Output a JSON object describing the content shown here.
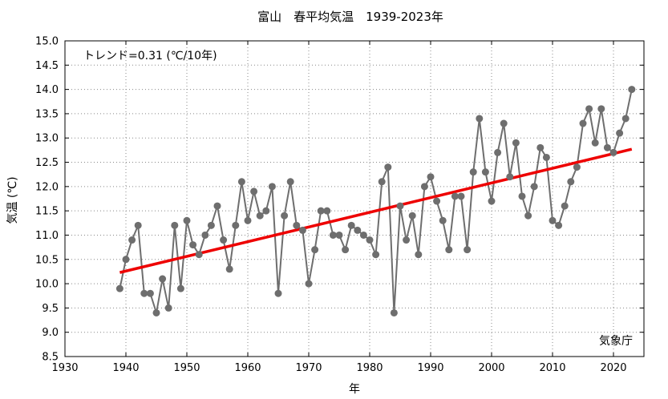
{
  "chart_data": {
    "type": "line",
    "title": "富山　春平均気温　1939-2023年",
    "xlabel": "年",
    "ylabel": "気温 (℃)",
    "xlim": [
      1930,
      2025
    ],
    "ylim": [
      8.5,
      15.0
    ],
    "xticks": [
      "1930",
      "1940",
      "1950",
      "1960",
      "1970",
      "1980",
      "1990",
      "2000",
      "2010",
      "2020"
    ],
    "yticks": [
      "8.5",
      "9.0",
      "9.5",
      "10.0",
      "10.5",
      "11.0",
      "11.5",
      "12.0",
      "12.5",
      "13.0",
      "13.5",
      "14.0",
      "14.5",
      "15.0"
    ],
    "grid": true,
    "trend_label": "トレンド=0.31 (℃/10年)",
    "source": "気象庁",
    "series": [
      {
        "color": "#6e6e6e",
        "x": [
          1939,
          1940,
          1941,
          1942,
          1943,
          1944,
          1945,
          1946,
          1947,
          1948,
          1949,
          1950,
          1951,
          1952,
          1953,
          1954,
          1955,
          1956,
          1957,
          1958,
          1959,
          1960,
          1961,
          1962,
          1963,
          1964,
          1965,
          1966,
          1967,
          1968,
          1969,
          1970,
          1971,
          1972,
          1973,
          1974,
          1975,
          1976,
          1977,
          1978,
          1979,
          1980,
          1981,
          1982,
          1983,
          1984,
          1985,
          1986,
          1987,
          1988,
          1989,
          1990,
          1991,
          1992,
          1993,
          1994,
          1995,
          1996,
          1997,
          1998,
          1999,
          2000,
          2001,
          2002,
          2003,
          2004,
          2005,
          2006,
          2007,
          2008,
          2009,
          2010,
          2011,
          2012,
          2013,
          2014,
          2015,
          2016,
          2017,
          2018,
          2019,
          2020,
          2021,
          2022,
          2023
        ],
        "values": [
          9.9,
          10.5,
          10.9,
          11.2,
          9.8,
          9.8,
          9.4,
          10.1,
          9.5,
          11.2,
          9.9,
          11.3,
          10.8,
          10.6,
          11.0,
          11.2,
          11.6,
          10.9,
          10.3,
          11.2,
          12.1,
          11.3,
          11.9,
          11.4,
          11.5,
          12.0,
          9.8,
          11.4,
          12.1,
          11.2,
          11.1,
          10.0,
          10.7,
          11.5,
          11.5,
          11.0,
          11.0,
          10.7,
          11.2,
          11.1,
          11.0,
          10.9,
          10.6,
          12.1,
          12.4,
          9.4,
          11.6,
          10.9,
          11.4,
          10.6,
          12.0,
          12.2,
          11.7,
          11.3,
          10.7,
          11.8,
          11.8,
          10.7,
          12.3,
          13.4,
          12.3,
          11.7,
          12.7,
          13.3,
          12.2,
          12.9,
          11.8,
          11.4,
          12.0,
          12.8,
          12.6,
          11.3,
          11.2,
          11.6,
          12.1,
          12.4,
          13.3,
          13.6,
          12.9,
          13.6,
          12.8,
          12.7,
          13.1,
          13.4,
          14.0
        ]
      },
      {
        "color": "#ee0000",
        "x": [
          1939,
          2023
        ],
        "values": [
          10.23,
          12.77
        ]
      }
    ]
  }
}
